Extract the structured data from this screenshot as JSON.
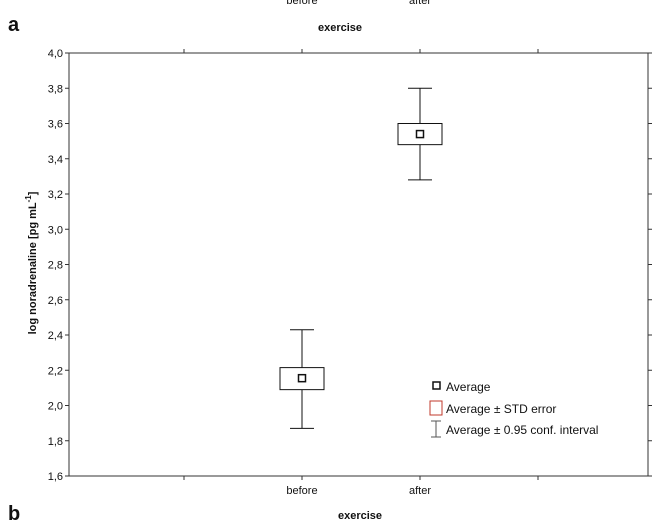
{
  "panels": {
    "top_label": "a",
    "bottom_label": "b",
    "prev_panel_ticks": [
      "before",
      "after"
    ],
    "prev_panel_xlabel": "exercise",
    "next_panel_xlabel": "exercise"
  },
  "chart_data": {
    "type": "box",
    "title": "",
    "xlabel": "",
    "ylabel": "log noradrenaline [pg mL",
    "ylabel_sup": "-1",
    "ylabel_close": "]",
    "ylim": [
      1.6,
      4.0
    ],
    "yticks": [
      1.6,
      1.8,
      2.0,
      2.2,
      2.4,
      2.6,
      2.8,
      3.0,
      3.2,
      3.4,
      3.6,
      3.8,
      4.0
    ],
    "ytick_labels": [
      "1,6",
      "1,8",
      "2,0",
      "2,2",
      "2,4",
      "2,6",
      "2,8",
      "3,0",
      "3,2",
      "3,4",
      "3,6",
      "3,8",
      "4,0"
    ],
    "categories": [
      "before",
      "after"
    ],
    "mean": [
      2.155,
      3.54
    ],
    "se_low": [
      2.09,
      3.48
    ],
    "se_high": [
      2.215,
      3.6
    ],
    "ci_low": [
      1.87,
      3.28
    ],
    "ci_high": [
      2.43,
      3.8
    ],
    "grid": false,
    "legend_position": "bottom-right",
    "legend": [
      "Average",
      "Average ± STD error",
      "Average ± 0.95 conf. interval"
    ]
  },
  "colors": {
    "axis": "#333333",
    "box": "#111111",
    "legend_box": "#c0392b"
  }
}
